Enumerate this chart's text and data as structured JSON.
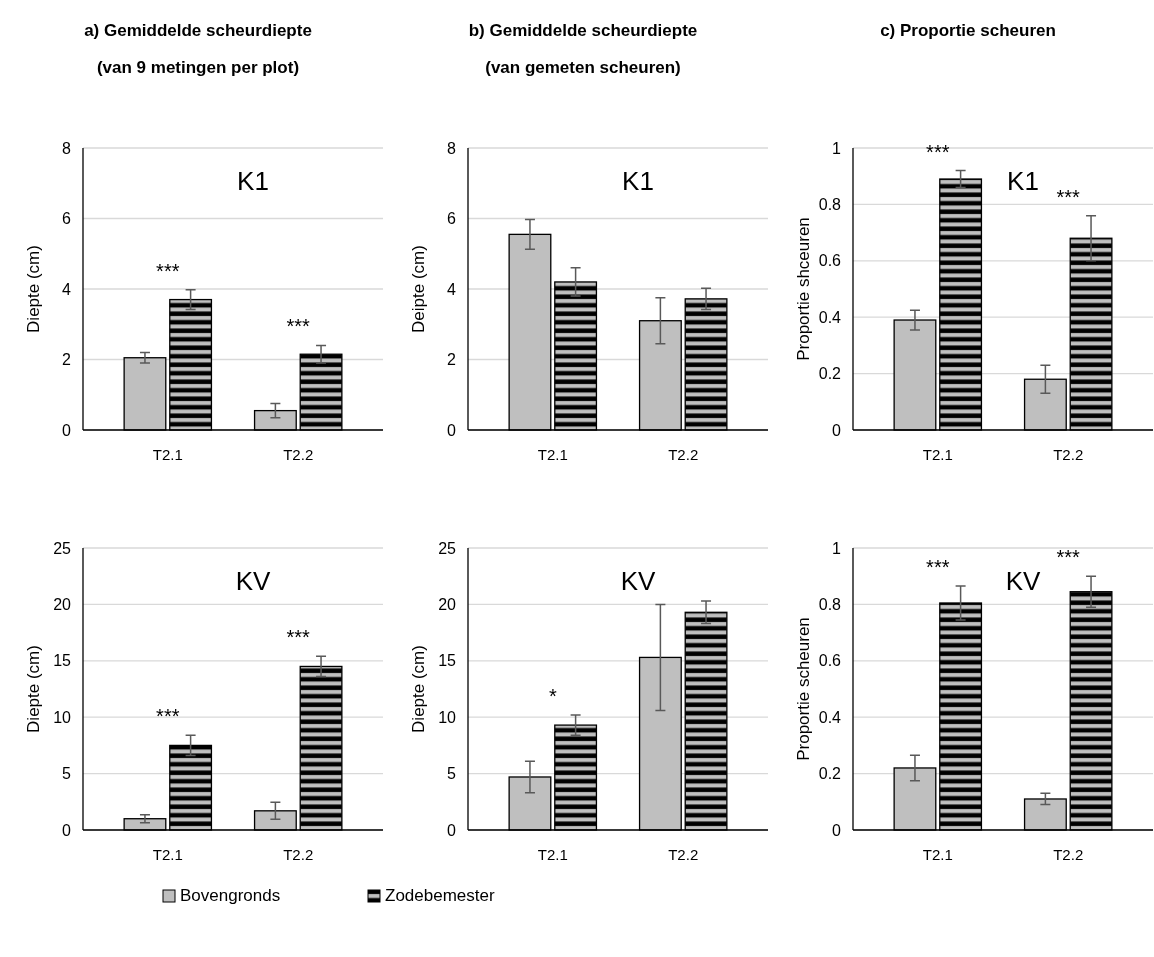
{
  "chart_data": [
    {
      "type": "bar",
      "title": "a) Gemiddelde scheurdiepte\n(van 9 metingen per plot)",
      "ylabel": "Diepte (cm)",
      "categories": [
        "T2.1",
        "T2.2"
      ],
      "ylim": [
        0,
        8
      ],
      "yticks": [
        0,
        2,
        4,
        6,
        8
      ],
      "grid": "y",
      "series": [
        {
          "color": "#bfbfbf",
          "values": [
            2.05,
            0.55
          ],
          "errors": [
            0.15,
            0.2
          ]
        },
        {
          "color": "#000000",
          "values": [
            3.7,
            2.15
          ],
          "errors": [
            0.28,
            0.25
          ]
        }
      ],
      "annotations": [
        "K1",
        "***",
        "***"
      ]
    },
    {
      "type": "bar",
      "title": "b) Gemiddelde scheurdiepte\n(van gemeten scheuren)",
      "ylabel": "Deipte (cm)",
      "categories": [
        "T2.1",
        "T2.2"
      ],
      "ylim": [
        0,
        8
      ],
      "yticks": [
        0,
        2,
        4,
        6,
        8
      ],
      "grid": "y",
      "series": [
        {
          "color": "#bfbfbf",
          "values": [
            5.55,
            3.1
          ],
          "errors": [
            0.42,
            0.65
          ]
        },
        {
          "color": "#000000",
          "values": [
            4.2,
            3.72
          ],
          "errors": [
            0.4,
            0.3
          ]
        }
      ],
      "annotations": [
        "K1"
      ]
    },
    {
      "type": "bar",
      "title": "c) Proportie scheuren",
      "ylabel": "Proportie shceuren",
      "categories": [
        "T2.1",
        "T2.2"
      ],
      "ylim": [
        0,
        1
      ],
      "yticks": [
        0,
        0.2,
        0.4,
        0.6,
        0.8,
        1
      ],
      "grid": "y",
      "series": [
        {
          "color": "#bfbfbf",
          "values": [
            0.39,
            0.18
          ],
          "errors": [
            0.035,
            0.05
          ]
        },
        {
          "color": "#000000",
          "values": [
            0.89,
            0.68
          ],
          "errors": [
            0.03,
            0.08
          ]
        }
      ],
      "annotations": [
        "K1",
        "***",
        "***"
      ]
    },
    {
      "type": "bar",
      "ylabel": "Diepte (cm)",
      "categories": [
        "T2.1",
        "T2.2"
      ],
      "ylim": [
        0,
        25
      ],
      "yticks": [
        0,
        5,
        10,
        15,
        20,
        25
      ],
      "grid": "y",
      "legend": "bottom",
      "series": [
        {
          "name": "Bovengronds",
          "color": "#bfbfbf",
          "values": [
            1.0,
            1.7
          ],
          "errors": [
            0.35,
            0.75
          ]
        },
        {
          "name": "Zodebemester",
          "color": "#000000",
          "values": [
            7.5,
            14.5
          ],
          "errors": [
            0.9,
            0.9
          ]
        }
      ],
      "annotations": [
        "KV",
        "***",
        "***"
      ]
    },
    {
      "type": "bar",
      "ylabel": "Diepte (cm)",
      "categories": [
        "T2.1",
        "T2.2"
      ],
      "ylim": [
        0,
        25
      ],
      "yticks": [
        0,
        5,
        10,
        15,
        20,
        25
      ],
      "grid": "y",
      "series": [
        {
          "color": "#bfbfbf",
          "values": [
            4.7,
            15.3
          ],
          "errors": [
            1.4,
            4.7
          ]
        },
        {
          "color": "#000000",
          "values": [
            9.3,
            19.3
          ],
          "errors": [
            0.9,
            1.0
          ]
        }
      ],
      "annotations": [
        "KV",
        "*"
      ]
    },
    {
      "type": "bar",
      "ylabel": "Proportie scheuren",
      "categories": [
        "T2.1",
        "T2.2"
      ],
      "ylim": [
        0,
        1
      ],
      "yticks": [
        0,
        0.2,
        0.4,
        0.6,
        0.8,
        1
      ],
      "grid": "y",
      "series": [
        {
          "color": "#bfbfbf",
          "values": [
            0.22,
            0.11
          ],
          "errors": [
            0.045,
            0.02
          ]
        },
        {
          "color": "#000000",
          "values": [
            0.805,
            0.845
          ],
          "errors": [
            0.06,
            0.055
          ]
        }
      ],
      "annotations": [
        "KV",
        "***",
        "***"
      ]
    }
  ]
}
